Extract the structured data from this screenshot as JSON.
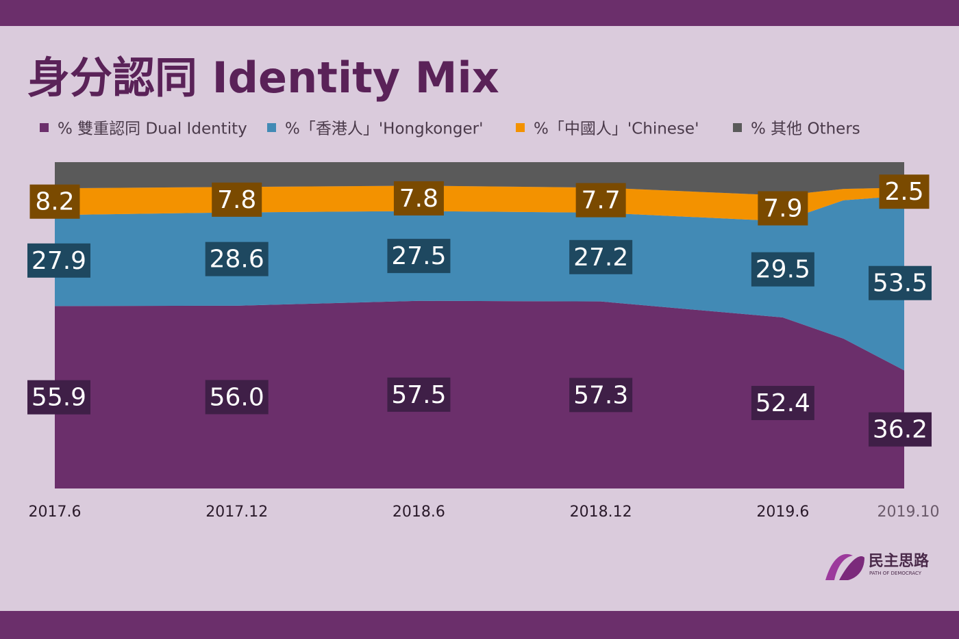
{
  "chart_data": {
    "type": "stacked_area",
    "title": "身分認同 Identity Mix",
    "categories": [
      "2017.6",
      "2017.12",
      "2018.6",
      "2018.12",
      "2019.6",
      null,
      "2019.10"
    ],
    "ylim": [
      0,
      100
    ],
    "legend": "top",
    "series": [
      {
        "name": "% 雙重認同 Dual Identity",
        "color": "#6b2f6b",
        "label_color": "#3f1f47",
        "values": [
          55.9,
          56.0,
          57.5,
          57.3,
          52.4,
          45.9,
          36.2
        ],
        "value_labels": [
          "55.9",
          "56.0",
          "57.5",
          "57.3",
          "52.4",
          null,
          "36.2"
        ]
      },
      {
        "name": "%「香港人」'Hongkonger'",
        "color": "#428ab5",
        "label_color": "#1e4860",
        "values": [
          27.9,
          28.6,
          27.5,
          27.2,
          29.5,
          42.4,
          53.5
        ],
        "value_labels": [
          "27.9",
          "28.6",
          "27.5",
          "27.2",
          "29.5",
          null,
          "53.5"
        ]
      },
      {
        "name": "%「中國人」'Chinese'",
        "color": "#f39200",
        "label_color": "#7a4a00",
        "values": [
          8.2,
          7.8,
          7.8,
          7.7,
          7.9,
          3.5,
          2.5
        ],
        "value_labels": [
          "8.2",
          "7.8",
          "7.8",
          "7.7",
          "7.9",
          null,
          "2.5"
        ]
      },
      {
        "name": "% 其他 Others",
        "color": "#5a5a5a",
        "values": [
          8.0,
          7.6,
          7.2,
          7.8,
          10.2,
          8.2,
          7.8
        ]
      }
    ]
  },
  "logo": {
    "name": "民主思路",
    "subtitle": "PATH OF DEMOCRACY"
  }
}
